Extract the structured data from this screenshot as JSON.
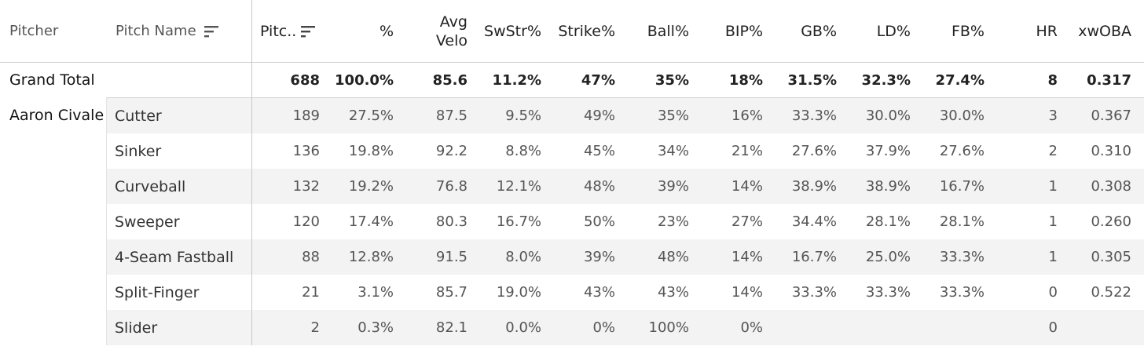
{
  "headers": {
    "pitcher": "Pitcher",
    "pitch_name": "Pitch Name",
    "pitches": "Pitc..",
    "pct": "%",
    "avg_velo_1": "Avg",
    "avg_velo_2": "Velo",
    "swstr": "SwStr%",
    "strike": "Strike%",
    "ball": "Ball%",
    "bip": "BIP%",
    "gb": "GB%",
    "ld": "LD%",
    "fb": "FB%",
    "hr": "HR",
    "xwoba": "xwOBA"
  },
  "grand_total": {
    "label": "Grand Total",
    "pitches": "688",
    "pct": "100.0%",
    "velo": "85.6",
    "swstr": "11.2%",
    "strike": "47%",
    "ball": "35%",
    "bip": "18%",
    "gb": "31.5%",
    "ld": "32.3%",
    "fb": "27.4%",
    "hr": "8",
    "xwoba": "0.317"
  },
  "pitcher": "Aaron Civale",
  "rows": [
    {
      "name": "Cutter",
      "pitches": "189",
      "pct": "27.5%",
      "velo": "87.5",
      "swstr": "9.5%",
      "strike": "49%",
      "ball": "35%",
      "bip": "16%",
      "gb": "33.3%",
      "ld": "30.0%",
      "fb": "30.0%",
      "hr": "3",
      "xwoba": "0.367"
    },
    {
      "name": "Sinker",
      "pitches": "136",
      "pct": "19.8%",
      "velo": "92.2",
      "swstr": "8.8%",
      "strike": "45%",
      "ball": "34%",
      "bip": "21%",
      "gb": "27.6%",
      "ld": "37.9%",
      "fb": "27.6%",
      "hr": "2",
      "xwoba": "0.310"
    },
    {
      "name": "Curveball",
      "pitches": "132",
      "pct": "19.2%",
      "velo": "76.8",
      "swstr": "12.1%",
      "strike": "48%",
      "ball": "39%",
      "bip": "14%",
      "gb": "38.9%",
      "ld": "38.9%",
      "fb": "16.7%",
      "hr": "1",
      "xwoba": "0.308"
    },
    {
      "name": "Sweeper",
      "pitches": "120",
      "pct": "17.4%",
      "velo": "80.3",
      "swstr": "16.7%",
      "strike": "50%",
      "ball": "23%",
      "bip": "27%",
      "gb": "34.4%",
      "ld": "28.1%",
      "fb": "28.1%",
      "hr": "1",
      "xwoba": "0.260"
    },
    {
      "name": "4-Seam Fastball",
      "pitches": "88",
      "pct": "12.8%",
      "velo": "91.5",
      "swstr": "8.0%",
      "strike": "39%",
      "ball": "48%",
      "bip": "14%",
      "gb": "16.7%",
      "ld": "25.0%",
      "fb": "33.3%",
      "hr": "1",
      "xwoba": "0.305"
    },
    {
      "name": "Split-Finger",
      "pitches": "21",
      "pct": "3.1%",
      "velo": "85.7",
      "swstr": "19.0%",
      "strike": "43%",
      "ball": "43%",
      "bip": "14%",
      "gb": "33.3%",
      "ld": "33.3%",
      "fb": "33.3%",
      "hr": "0",
      "xwoba": "0.522"
    },
    {
      "name": "Slider",
      "pitches": "2",
      "pct": "0.3%",
      "velo": "82.1",
      "swstr": "0.0%",
      "strike": "0%",
      "ball": "100%",
      "bip": "0%",
      "gb": "",
      "ld": "",
      "fb": "",
      "hr": "0",
      "xwoba": ""
    }
  ]
}
